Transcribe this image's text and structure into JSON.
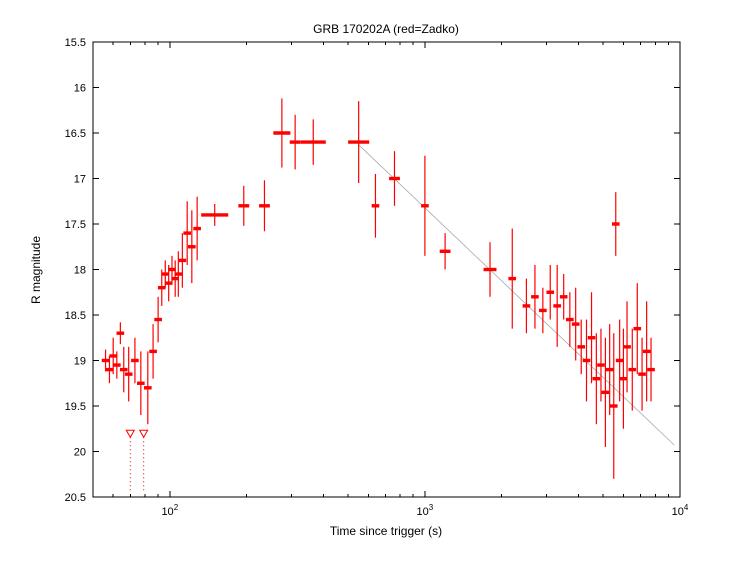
{
  "chart_data": {
    "type": "scatter",
    "title": "GRB 170202A (red=Zadko)",
    "xlabel": "Time since trigger (s)",
    "ylabel": "R magnitude",
    "x_scale": "log",
    "xlim": [
      50,
      10000
    ],
    "ylim": [
      15.5,
      20.5
    ],
    "y_inverted": true,
    "x_ticks": [
      100,
      1000,
      10000
    ],
    "x_tick_labels": [
      "10^2",
      "10^3",
      "10^4"
    ],
    "y_ticks": [
      15.5,
      16,
      16.5,
      17,
      17.5,
      18,
      18.5,
      19,
      19.5,
      20,
      20.5
    ],
    "marker_color": "#ff0000",
    "fit_line_color": "#aaaaaa",
    "axis_color": "#000000",
    "grid": false,
    "legend": "none",
    "points": [
      {
        "t": 56,
        "mag": 19.0,
        "err": 0.12
      },
      {
        "t": 58,
        "mag": 19.1,
        "err": 0.15
      },
      {
        "t": 60,
        "mag": 18.95,
        "err": 0.2
      },
      {
        "t": 62,
        "mag": 19.05,
        "err": 0.15
      },
      {
        "t": 64,
        "mag": 18.7,
        "err": 0.12
      },
      {
        "t": 66,
        "mag": 19.1,
        "err": 0.25
      },
      {
        "t": 69,
        "mag": 19.15,
        "err": 0.3
      },
      {
        "t": 73,
        "mag": 19.0,
        "err": 0.25
      },
      {
        "t": 77,
        "mag": 19.25,
        "err": 0.35
      },
      {
        "t": 82,
        "mag": 19.3,
        "err": 0.4
      },
      {
        "t": 86,
        "mag": 18.9,
        "err": 0.3
      },
      {
        "t": 90,
        "mag": 18.55,
        "err": 0.25
      },
      {
        "t": 93,
        "mag": 18.2,
        "err": 0.2
      },
      {
        "t": 96,
        "mag": 18.05,
        "err": 0.15
      },
      {
        "t": 99,
        "mag": 18.15,
        "err": 0.2
      },
      {
        "t": 102,
        "mag": 18.0,
        "err": 0.15
      },
      {
        "t": 105,
        "mag": 18.1,
        "err": 0.2
      },
      {
        "t": 108,
        "mag": 18.05,
        "err": 0.25
      },
      {
        "t": 112,
        "mag": 17.9,
        "err": 0.3
      },
      {
        "t": 117,
        "mag": 17.6,
        "err": 0.35
      },
      {
        "t": 122,
        "mag": 17.75,
        "err": 0.4
      },
      {
        "t": 128,
        "mag": 17.55,
        "err": 0.35
      },
      {
        "t": 150,
        "mag": 17.4,
        "err": 0.12,
        "tw": 1.13
      },
      {
        "t": 195,
        "mag": 17.3,
        "err": 0.22,
        "tw": 1.05
      },
      {
        "t": 235,
        "mag": 17.3,
        "err": 0.28,
        "tw": 1.05
      },
      {
        "t": 275,
        "mag": 16.5,
        "err": 0.38,
        "tw": 1.08
      },
      {
        "t": 310,
        "mag": 16.6,
        "err": 0.3,
        "tw": 1.05
      },
      {
        "t": 365,
        "mag": 16.6,
        "err": 0.25,
        "tw": 1.12
      },
      {
        "t": 550,
        "mag": 16.6,
        "err": 0.45,
        "tw": 1.1
      },
      {
        "t": 640,
        "mag": 17.3,
        "err": 0.35
      },
      {
        "t": 760,
        "mag": 17.0,
        "err": 0.3,
        "tw": 1.05
      },
      {
        "t": 1000,
        "mag": 17.3,
        "err": 0.55
      },
      {
        "t": 1200,
        "mag": 17.8,
        "err": 0.2,
        "tw": 1.05
      },
      {
        "t": 1800,
        "mag": 18.0,
        "err": 0.3,
        "tw": 1.06
      },
      {
        "t": 2200,
        "mag": 18.1,
        "err": 0.55
      },
      {
        "t": 2500,
        "mag": 18.4,
        "err": 0.3
      },
      {
        "t": 2700,
        "mag": 18.3,
        "err": 0.35
      },
      {
        "t": 2900,
        "mag": 18.45,
        "err": 0.25
      },
      {
        "t": 3100,
        "mag": 18.25,
        "err": 0.3
      },
      {
        "t": 3300,
        "mag": 18.4,
        "err": 0.45
      },
      {
        "t": 3500,
        "mag": 18.3,
        "err": 0.25
      },
      {
        "t": 3700,
        "mag": 18.55,
        "err": 0.3
      },
      {
        "t": 3900,
        "mag": 18.6,
        "err": 0.4
      },
      {
        "t": 4100,
        "mag": 18.85,
        "err": 0.3
      },
      {
        "t": 4300,
        "mag": 19.0,
        "err": 0.45
      },
      {
        "t": 4500,
        "mag": 18.75,
        "err": 0.5
      },
      {
        "t": 4700,
        "mag": 19.2,
        "err": 0.5
      },
      {
        "t": 4900,
        "mag": 19.05,
        "err": 0.4
      },
      {
        "t": 5100,
        "mag": 19.35,
        "err": 0.6
      },
      {
        "t": 5300,
        "mag": 19.1,
        "err": 0.5
      },
      {
        "t": 5500,
        "mag": 19.5,
        "err": 0.8
      },
      {
        "t": 5600,
        "mag": 17.5,
        "err": 0.35
      },
      {
        "t": 5800,
        "mag": 19.0,
        "err": 0.45
      },
      {
        "t": 6000,
        "mag": 19.2,
        "err": 0.55
      },
      {
        "t": 6200,
        "mag": 18.85,
        "err": 0.5
      },
      {
        "t": 6500,
        "mag": 19.1,
        "err": 0.45
      },
      {
        "t": 6800,
        "mag": 18.65,
        "err": 0.5
      },
      {
        "t": 7100,
        "mag": 19.15,
        "err": 0.4
      },
      {
        "t": 7400,
        "mag": 18.9,
        "err": 0.55
      },
      {
        "t": 7700,
        "mag": 19.1,
        "err": 0.35
      }
    ],
    "upper_limits": [
      {
        "t": 70,
        "mag": 19.8
      },
      {
        "t": 79,
        "mag": 19.8
      }
    ],
    "upper_limit_stem_to": 20.45,
    "fit_line": {
      "t": [
        550,
        9500
      ],
      "mag": [
        16.63,
        19.93
      ]
    }
  }
}
